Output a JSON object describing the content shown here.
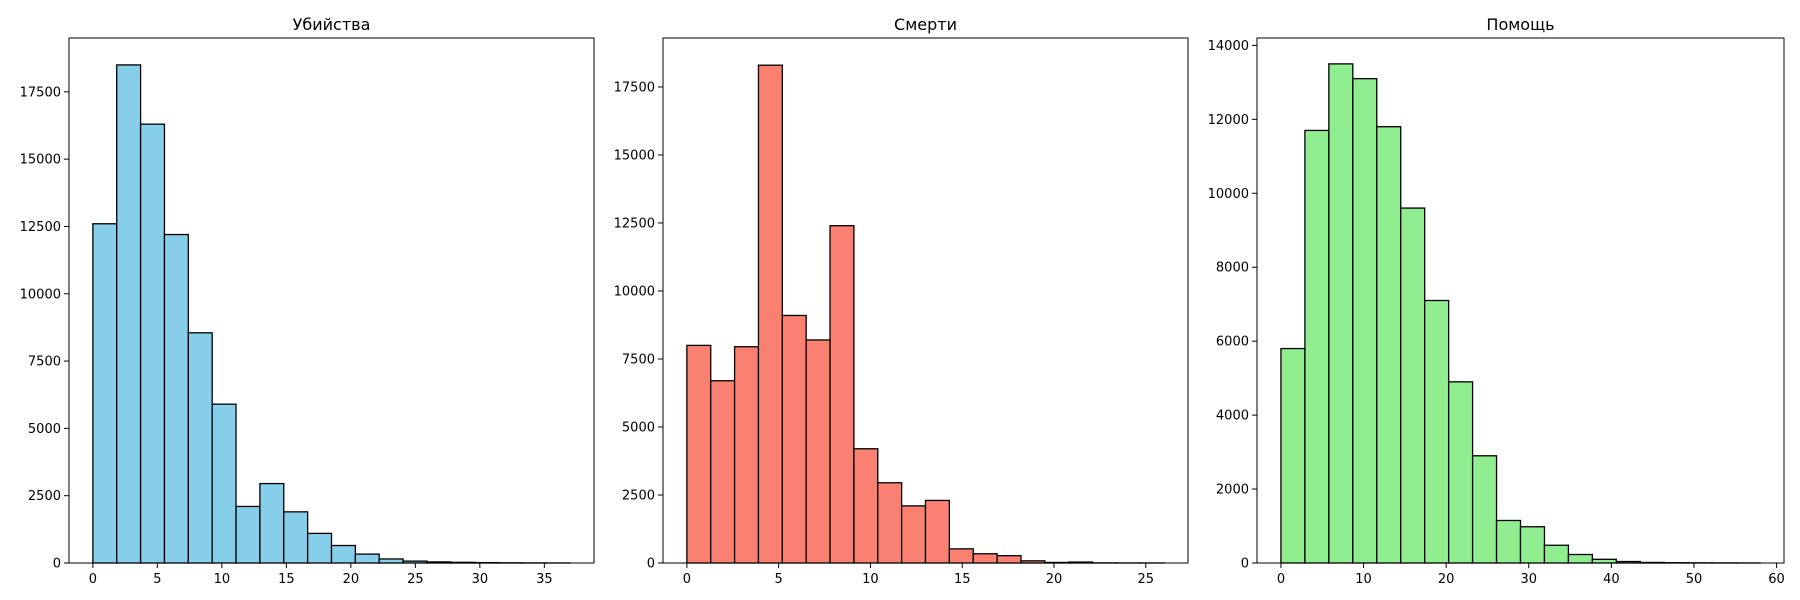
{
  "chart_data": [
    {
      "type": "bar",
      "histogram": true,
      "title": "Убийства",
      "xlabel": "",
      "ylabel": "",
      "color": "#87ceeb",
      "edge_color": "#000000",
      "xlim": [
        -1.85,
        38.85
      ],
      "ylim": [
        0,
        19500
      ],
      "bin_start": 0,
      "bin_width": 1.85,
      "values": [
        12600,
        18500,
        16300,
        12200,
        8550,
        5900,
        2100,
        2950,
        1900,
        1100,
        650,
        330,
        150,
        70,
        40,
        25,
        15,
        8,
        4,
        2
      ],
      "x_ticks": [
        0,
        5,
        10,
        15,
        20,
        25,
        30,
        35
      ],
      "y_ticks": [
        0,
        2500,
        5000,
        7500,
        10000,
        12500,
        15000,
        17500
      ],
      "x_tick_labels": [
        "0",
        "5",
        "10",
        "15",
        "20",
        "25",
        "30",
        "35"
      ],
      "y_tick_labels": [
        "0",
        "2500",
        "5000",
        "7500",
        "10000",
        "12500",
        "15000",
        "17500"
      ]
    },
    {
      "type": "bar",
      "histogram": true,
      "title": "Смерти",
      "xlabel": "",
      "ylabel": "",
      "color": "#fa8072",
      "edge_color": "#000000",
      "xlim": [
        -1.3,
        27.3
      ],
      "ylim": [
        0,
        19300
      ],
      "bin_start": 0,
      "bin_width": 1.3,
      "values": [
        8000,
        6700,
        7950,
        18300,
        9100,
        8200,
        12400,
        4200,
        2950,
        2100,
        2300,
        520,
        340,
        270,
        80,
        20,
        35,
        5,
        3,
        2
      ],
      "x_ticks": [
        0,
        5,
        10,
        15,
        20,
        25
      ],
      "y_ticks": [
        0,
        2500,
        5000,
        7500,
        10000,
        12500,
        15000,
        17500
      ],
      "x_tick_labels": [
        "0",
        "5",
        "10",
        "15",
        "20",
        "25"
      ],
      "y_tick_labels": [
        "0",
        "2500",
        "5000",
        "7500",
        "10000",
        "12500",
        "15000",
        "17500"
      ]
    },
    {
      "type": "bar",
      "histogram": true,
      "title": "Помощь",
      "xlabel": "",
      "ylabel": "",
      "color": "#90ee90",
      "edge_color": "#000000",
      "xlim": [
        -2.9,
        60.9
      ],
      "ylim": [
        0,
        14200
      ],
      "bin_start": 0,
      "bin_width": 2.9,
      "values": [
        5800,
        11700,
        13500,
        13100,
        11800,
        9600,
        7100,
        4900,
        2900,
        1150,
        980,
        480,
        230,
        100,
        40,
        15,
        8,
        5,
        3,
        2
      ],
      "x_ticks": [
        0,
        10,
        20,
        30,
        40,
        50,
        60
      ],
      "y_ticks": [
        0,
        2000,
        4000,
        6000,
        8000,
        10000,
        12000,
        14000
      ],
      "x_tick_labels": [
        "0",
        "10",
        "20",
        "30",
        "40",
        "50",
        "60"
      ],
      "y_tick_labels": [
        "0",
        "2000",
        "4000",
        "6000",
        "8000",
        "10000",
        "12000",
        "14000"
      ]
    }
  ]
}
